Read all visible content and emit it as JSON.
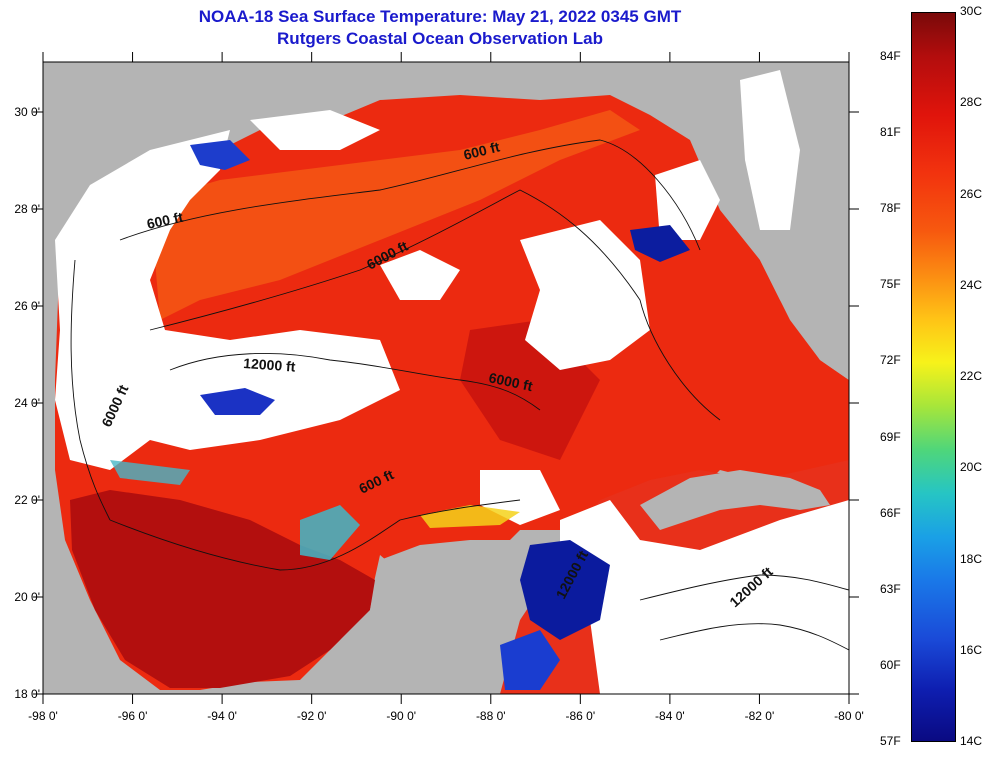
{
  "title_line1": "NOAA-18 Sea Surface Temperature:  May 21, 2022 0345 GMT",
  "title_line2": "Rutgers Coastal Ocean Observation Lab",
  "lon_ticks": [
    "-98 0'",
    "-96 0'",
    "-94 0'",
    "-92 0'",
    "-90 0'",
    "-88 0'",
    "-86 0'",
    "-84 0'",
    "-82 0'",
    "-80 0'"
  ],
  "lat_ticks": [
    "30 0'",
    "28 0'",
    "26 0'",
    "24 0'",
    "22 0'",
    "20 0'",
    "18 0'"
  ],
  "contour_labels": [
    "600 ft",
    "600 ft",
    "6000 ft",
    "12000 ft",
    "6000 ft",
    "600 ft",
    "6000 ft",
    "12000 ft",
    "12000 ft"
  ],
  "colorbar": {
    "celsius": [
      "30C",
      "28C",
      "26C",
      "24C",
      "22C",
      "20C",
      "18C",
      "16C",
      "14C"
    ],
    "fahrenheit": [
      "84F",
      "81F",
      "78F",
      "75F",
      "72F",
      "69F",
      "66F",
      "63F",
      "60F",
      "57F"
    ]
  },
  "colors": {
    "title": "#1a1acc",
    "land": "#b4b4b4",
    "cloud": "#ffffff",
    "warm": "#e31a0c",
    "hot": "#b50d0d",
    "cold": "#0a1a9c"
  }
}
